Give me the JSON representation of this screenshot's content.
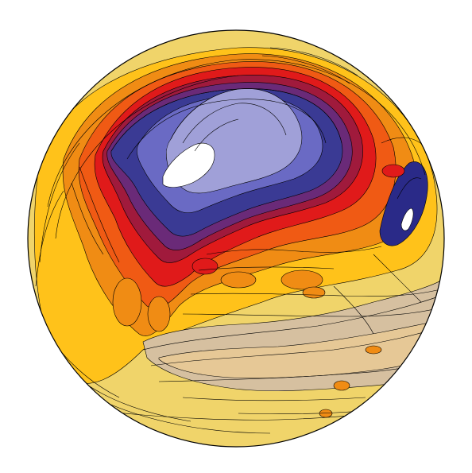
{
  "figure": {
    "projection": "orthographic",
    "hemisphere": "northern",
    "background": "#ffffff",
    "outline_color": "#000000",
    "contour_line_color": "#000000"
  },
  "color_scale": {
    "cold_to_warm": [
      "#ffffff",
      "#a0a0d8",
      "#6a6ac4",
      "#3a3a94",
      "#6a2a78",
      "#a01a3c",
      "#e01a1a",
      "#f05a14",
      "#f08c14",
      "#ffc21a",
      "#f0d46a",
      "#e6c896",
      "#d6c0a0"
    ]
  },
  "regions": {
    "polar_cap": "#a0a0d8",
    "cold_ring": "#3a3a94",
    "cold_spot_east": "#2a2a88",
    "warm_band": "#e01a1a",
    "subtropics": "#ffc21a",
    "arid_land": "#d6c0a0",
    "ocean_low_latitude": "#f0d46a"
  }
}
